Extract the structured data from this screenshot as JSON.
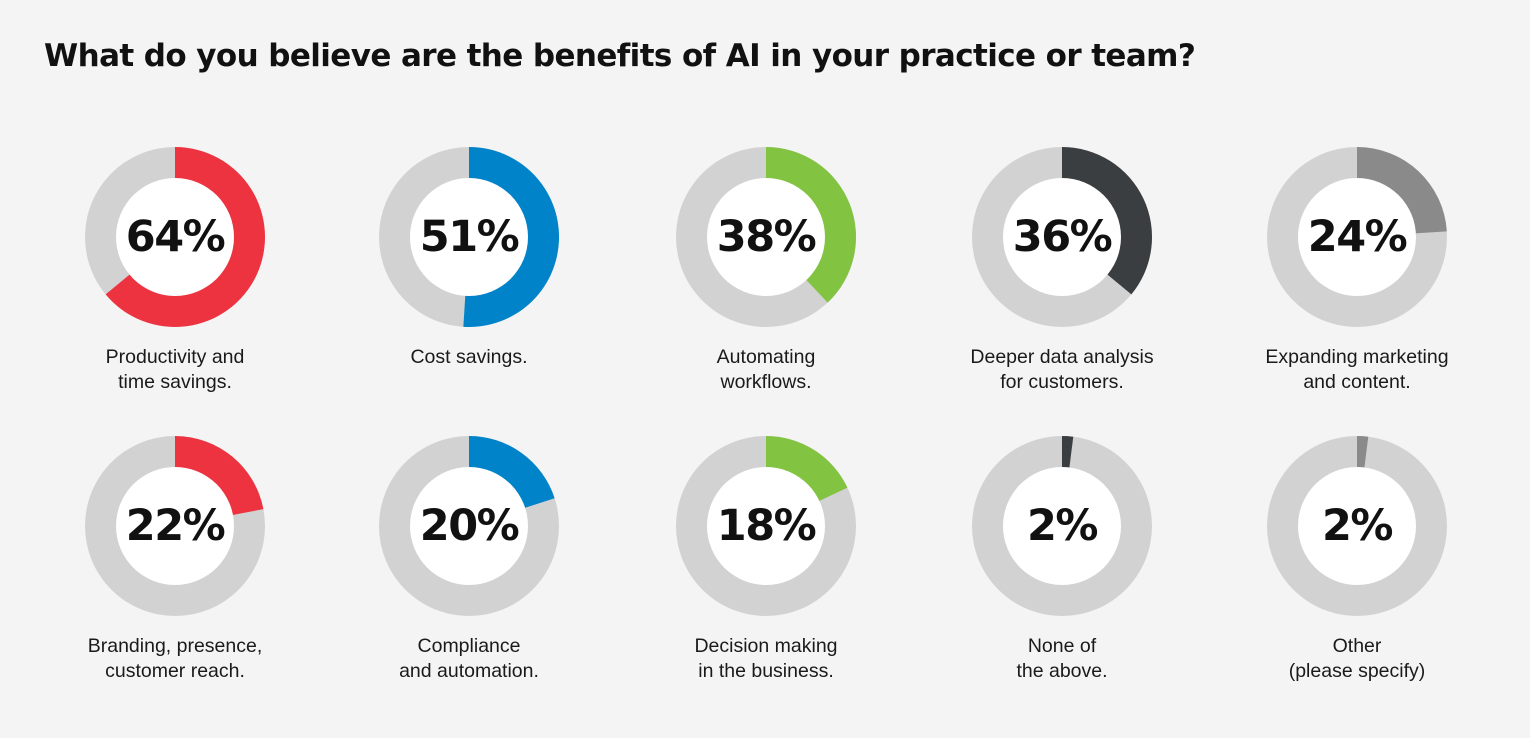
{
  "title": "What do you believe are the benefits of AI in your practice or team?",
  "colors": {
    "background": "#f4f4f4",
    "track": "#d2d2d2",
    "hole": "#ffffff",
    "red": "#ee3340",
    "blue": "#0083c9",
    "green": "#82c341",
    "dark": "#3b3e40",
    "gray": "#8a8a8a"
  },
  "chart_data": {
    "type": "pie",
    "title": "What do you believe are the benefits of AI in your practice or team?",
    "unit": "%",
    "items": [
      {
        "value": 64,
        "display": "64%",
        "label_lines": [
          "Productivity and",
          "time savings."
        ],
        "color": "#ee3340"
      },
      {
        "value": 51,
        "display": "51%",
        "label_lines": [
          "Cost savings."
        ],
        "color": "#0083c9"
      },
      {
        "value": 38,
        "display": "38%",
        "label_lines": [
          "Automating",
          "workflows."
        ],
        "color": "#82c341"
      },
      {
        "value": 36,
        "display": "36%",
        "label_lines": [
          "Deeper data analysis",
          "for customers."
        ],
        "color": "#3b3e40"
      },
      {
        "value": 24,
        "display": "24%",
        "label_lines": [
          "Expanding marketing",
          "and content."
        ],
        "color": "#8a8a8a"
      },
      {
        "value": 22,
        "display": "22%",
        "label_lines": [
          "Branding, presence,",
          "customer reach."
        ],
        "color": "#ee3340"
      },
      {
        "value": 20,
        "display": "20%",
        "label_lines": [
          "Compliance",
          "and automation."
        ],
        "color": "#0083c9"
      },
      {
        "value": 18,
        "display": "18%",
        "label_lines": [
          "Decision making",
          "in the business."
        ],
        "color": "#82c341"
      },
      {
        "value": 2,
        "display": "2%",
        "label_lines": [
          "None of",
          "the above."
        ],
        "color": "#3b3e40"
      },
      {
        "value": 2,
        "display": "2%",
        "label_lines": [
          "Other",
          "(please specify)"
        ],
        "color": "#8a8a8a"
      }
    ]
  }
}
